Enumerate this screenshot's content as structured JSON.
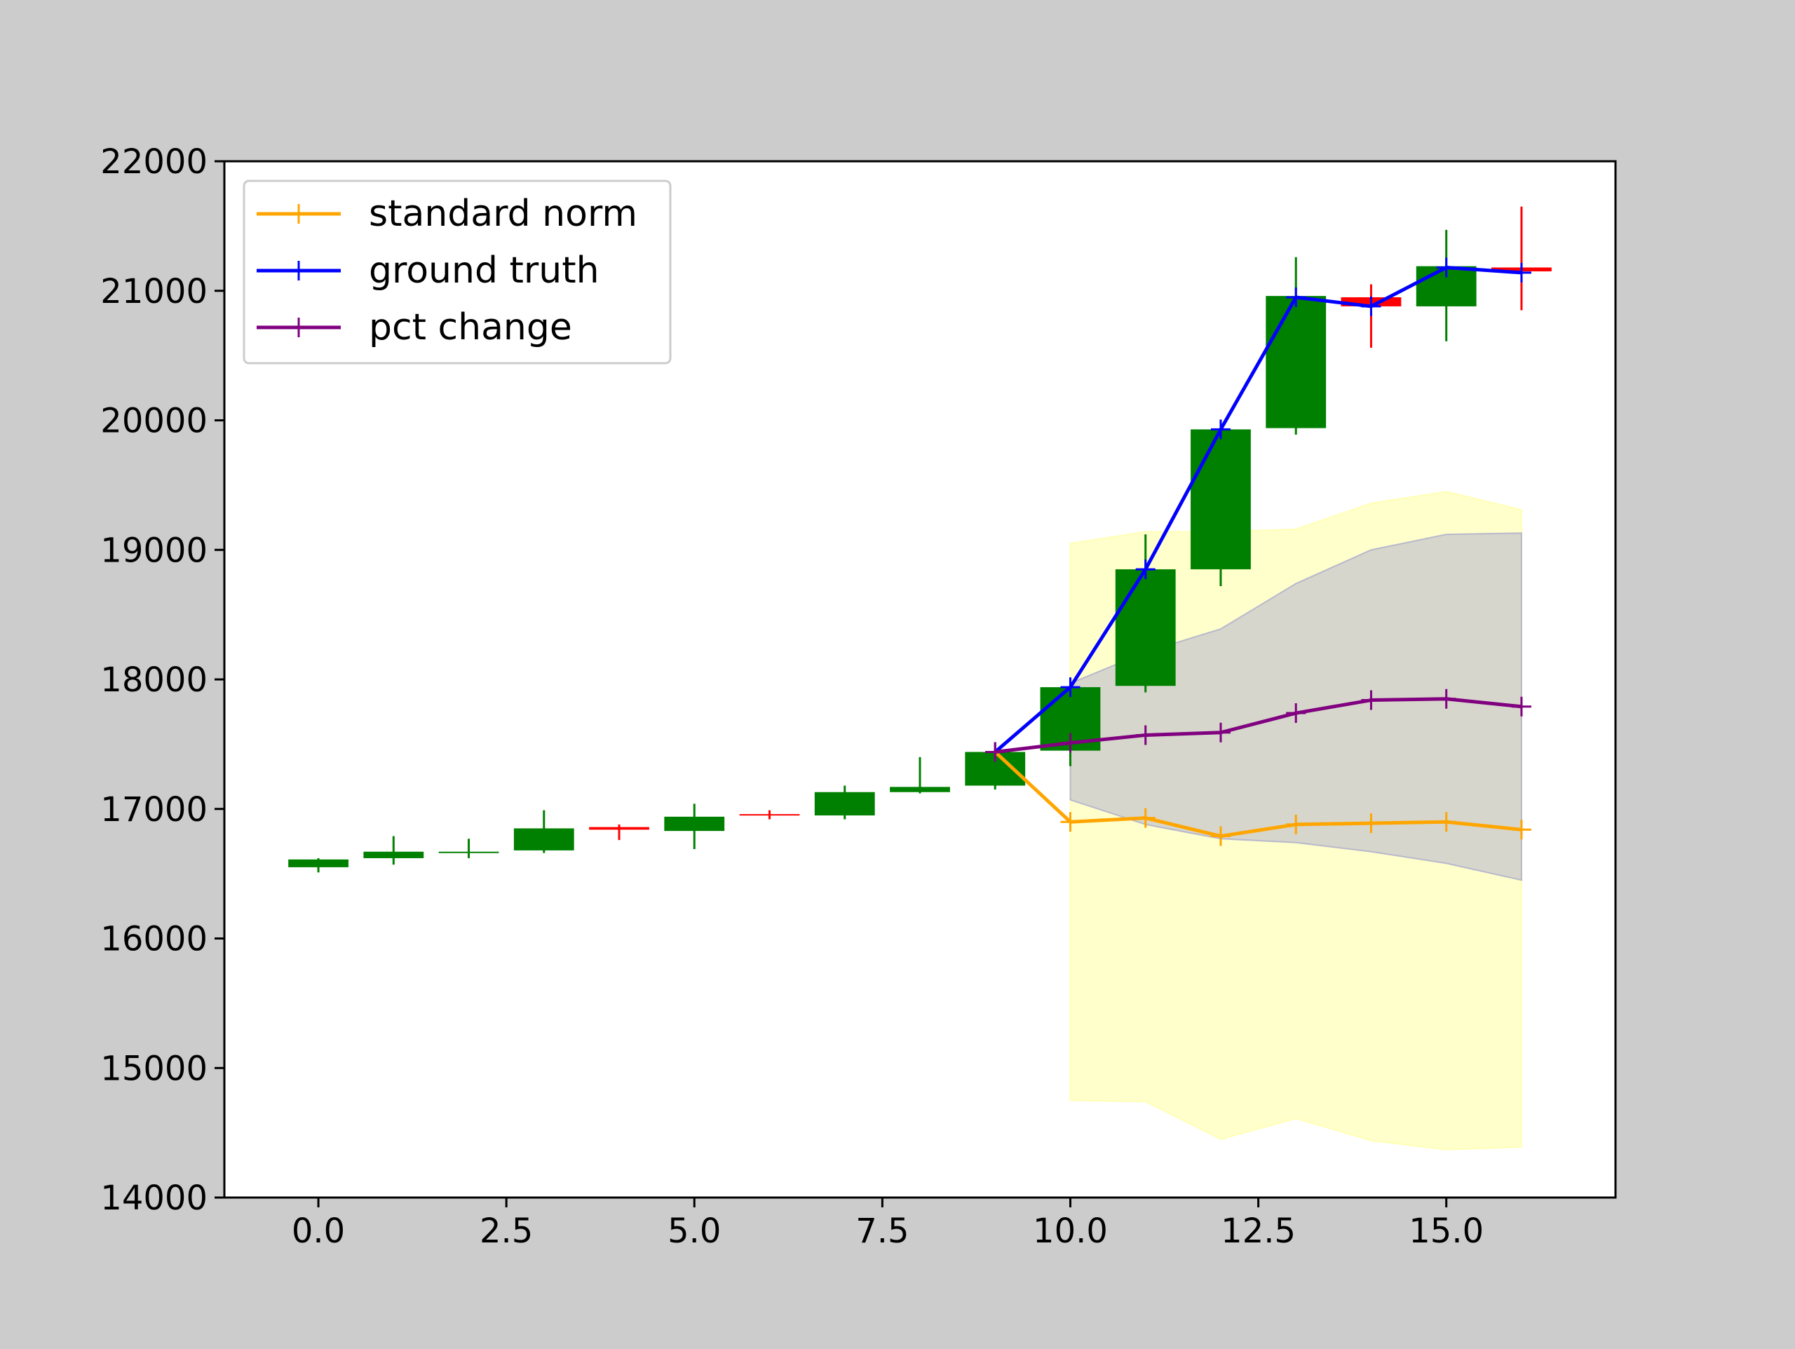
{
  "chart_data": {
    "type": "line",
    "title": "",
    "xlabel": "",
    "ylabel": "",
    "xlim": [
      -1.25,
      17.25
    ],
    "ylim": [
      14000,
      22000
    ],
    "grid": false,
    "legend_position": "upper-left",
    "x_ticks": [
      0.0,
      2.5,
      5.0,
      7.5,
      10.0,
      12.5,
      15.0
    ],
    "x_tick_labels": [
      "0.0",
      "2.5",
      "5.0",
      "7.5",
      "10.0",
      "12.5",
      "15.0"
    ],
    "y_ticks": [
      14000,
      15000,
      16000,
      17000,
      18000,
      19000,
      20000,
      21000,
      22000
    ],
    "y_tick_labels": [
      "14000",
      "15000",
      "16000",
      "17000",
      "18000",
      "19000",
      "20000",
      "21000",
      "22000"
    ],
    "candlesticks": [
      {
        "x": 0,
        "open": 16550,
        "close": 16610,
        "high": 16620,
        "low": 16510
      },
      {
        "x": 1,
        "open": 16620,
        "close": 16670,
        "high": 16790,
        "low": 16570
      },
      {
        "x": 2,
        "open": 16660,
        "close": 16670,
        "high": 16770,
        "low": 16620
      },
      {
        "x": 3,
        "open": 16680,
        "close": 16850,
        "high": 16990,
        "low": 16660
      },
      {
        "x": 4,
        "open": 16860,
        "close": 16840,
        "high": 16880,
        "low": 16760
      },
      {
        "x": 5,
        "open": 16830,
        "close": 16940,
        "high": 17040,
        "low": 16690
      },
      {
        "x": 6,
        "open": 16960,
        "close": 16950,
        "high": 16990,
        "low": 16920
      },
      {
        "x": 7,
        "open": 16950,
        "close": 17130,
        "high": 17180,
        "low": 16920
      },
      {
        "x": 8,
        "open": 17130,
        "close": 17170,
        "high": 17400,
        "low": 17120
      },
      {
        "x": 9,
        "open": 17180,
        "close": 17440,
        "high": 17450,
        "low": 17150
      },
      {
        "x": 10,
        "open": 17450,
        "close": 17940,
        "high": 17960,
        "low": 17330
      },
      {
        "x": 11,
        "open": 17950,
        "close": 18850,
        "high": 19120,
        "low": 17900
      },
      {
        "x": 12,
        "open": 18850,
        "close": 19930,
        "high": 19940,
        "low": 18720
      },
      {
        "x": 13,
        "open": 19940,
        "close": 20960,
        "high": 21260,
        "low": 19890
      },
      {
        "x": 14,
        "open": 20950,
        "close": 20880,
        "high": 21050,
        "low": 20560
      },
      {
        "x": 15,
        "open": 20880,
        "close": 21190,
        "high": 21470,
        "low": 20610
      },
      {
        "x": 16,
        "open": 21180,
        "close": 21150,
        "high": 21650,
        "low": 20850
      }
    ],
    "series": [
      {
        "name": "standard norm",
        "color": "#ffa500",
        "x": [
          9,
          10,
          11,
          12,
          13,
          14,
          15,
          16
        ],
        "values": [
          17440,
          16900,
          16930,
          16790,
          16880,
          16890,
          16900,
          16840
        ]
      },
      {
        "name": "ground truth",
        "color": "#0000ff",
        "x": [
          9,
          10,
          11,
          12,
          13,
          14,
          15,
          16
        ],
        "values": [
          17440,
          17940,
          18850,
          19930,
          20950,
          20880,
          21180,
          21140
        ]
      },
      {
        "name": "pct change",
        "color": "#800080",
        "x": [
          9,
          10,
          11,
          12,
          13,
          14,
          15,
          16
        ],
        "values": [
          17440,
          17510,
          17570,
          17590,
          17740,
          17840,
          17850,
          17790
        ]
      }
    ],
    "bands": [
      {
        "color": "#ffff99",
        "opacity": 0.5,
        "x": [
          10,
          11,
          12,
          13,
          14,
          15,
          16
        ],
        "upper": [
          19050,
          19140,
          19140,
          19160,
          19360,
          19450,
          19310
        ],
        "lower": [
          14750,
          14740,
          14450,
          14610,
          14440,
          14370,
          14390
        ]
      },
      {
        "color": "#9999cc",
        "opacity": 0.4,
        "x": [
          10,
          11,
          12,
          13,
          14,
          15,
          16
        ],
        "upper": [
          17970,
          18210,
          18390,
          18740,
          19000,
          19120,
          19130
        ],
        "lower": [
          17070,
          16880,
          16770,
          16740,
          16670,
          16580,
          16450
        ]
      }
    ],
    "legend": [
      {
        "label": "standard norm",
        "color": "#ffa500"
      },
      {
        "label": "ground truth",
        "color": "#0000ff"
      },
      {
        "label": "pct change",
        "color": "#800080"
      }
    ]
  }
}
